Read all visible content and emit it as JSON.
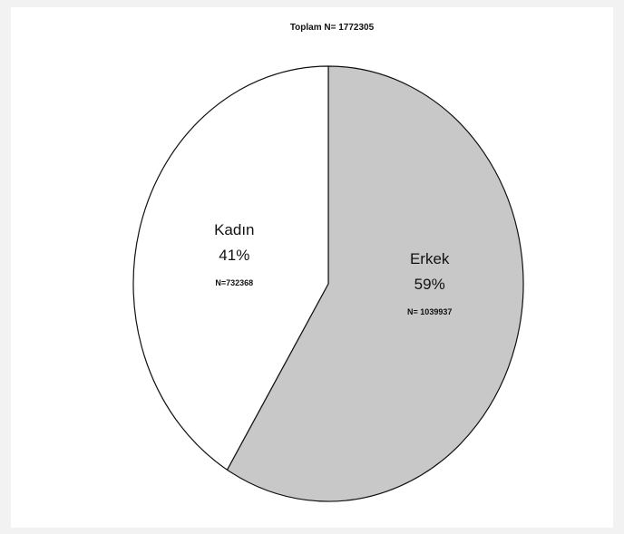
{
  "chart_data": {
    "type": "pie",
    "title": "Toplam N= 1772305",
    "slices": [
      {
        "label": "Erkek",
        "percent": 59,
        "percent_label": "59%",
        "n_label": "N= 1039937",
        "value": 1039937,
        "color": "#c8c8c8"
      },
      {
        "label": "Kadın",
        "percent": 41,
        "percent_label": "41%",
        "n_label": "N=732368",
        "value": 732368,
        "color": "#ffffff"
      }
    ],
    "start_angle": "12 o'clock",
    "direction": "clockwise",
    "legend": "none"
  }
}
